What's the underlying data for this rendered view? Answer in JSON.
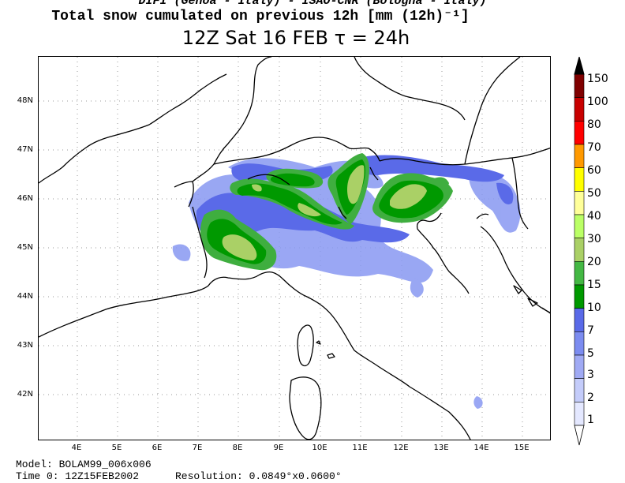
{
  "header": {
    "institutions": "DIFI (Genoa - Italy)  -  ISAO-CNR (Bologna - Italy)",
    "title": "Total snow cumulated on previous 12h [mm (12h)⁻¹]",
    "time_label": "12Z Sat 16 FEB   τ = 24h"
  },
  "map": {
    "lat_labels": [
      "48N",
      "47N",
      "46N",
      "45N",
      "44N",
      "43N",
      "42N"
    ],
    "lon_labels": [
      "4E",
      "5E",
      "6E",
      "7E",
      "8E",
      "9E",
      "10E",
      "11E",
      "12E",
      "13E",
      "14E",
      "15E"
    ]
  },
  "colorbar": {
    "labels": [
      "150",
      "100",
      "80",
      "70",
      "60",
      "50",
      "40",
      "30",
      "20",
      "15",
      "10",
      "7",
      "5",
      "3",
      "2",
      "1"
    ],
    "colors": [
      "#000000",
      "#800000",
      "#c80000",
      "#ff0000",
      "#ff9900",
      "#ffff00",
      "#ffff99",
      "#bbff66",
      "#aad066",
      "#44b844",
      "#009900",
      "#5a6ae8",
      "#7c8cf0",
      "#a0aaf4",
      "#c4ccfa",
      "#e4e8ff"
    ]
  },
  "footer": {
    "model": "Model: BOLAM99_006x006",
    "time0": "Time 0: 12Z15FEB2002",
    "resolution": "Resolution: 0.0849°x0.0600°"
  }
}
